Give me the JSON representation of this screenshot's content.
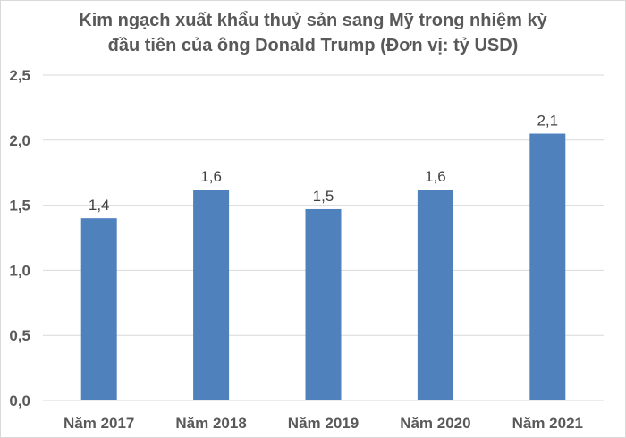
{
  "chart_data": {
    "type": "bar",
    "title_lines": [
      "Kim ngạch xuất khẩu thuỷ sản sang Mỹ trong nhiệm kỳ",
      "đầu tiên của ông Donald Trump (Đơn vị: tỷ USD)"
    ],
    "categories": [
      "Năm 2017",
      "Năm 2018",
      "Năm 2019",
      "Năm 2020",
      "Năm 2021"
    ],
    "values": [
      1.4,
      1.62,
      1.47,
      1.62,
      2.05
    ],
    "data_labels": [
      "1,4",
      "1,6",
      "1,5",
      "1,6",
      "2,1"
    ],
    "ylim": [
      0,
      2.5
    ],
    "y_ticks": [
      0,
      0.5,
      1.0,
      1.5,
      2.0,
      2.5
    ],
    "y_tick_labels": [
      "0,0",
      "0,5",
      "1,0",
      "1,5",
      "2,0",
      "2,5"
    ],
    "grid": true,
    "bar_color": "#4f81bd",
    "grid_color": "#d9d9d9"
  }
}
